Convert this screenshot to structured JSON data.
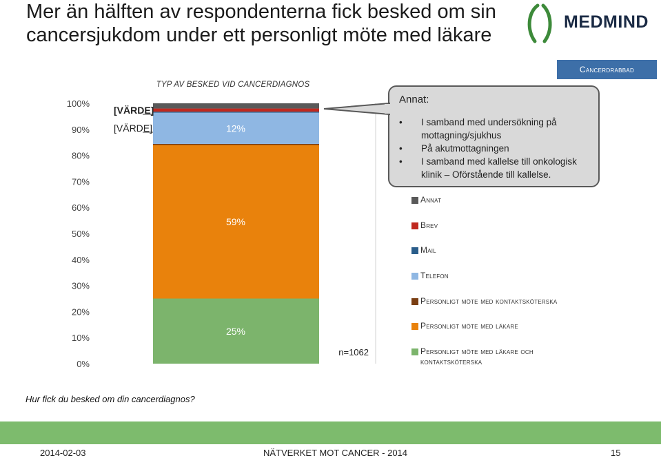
{
  "slide": {
    "title_line1": "Mer än hälften av respondenterna fick besked om sin",
    "title_line2": "cancersjukdom under ett personligt möte med läkare",
    "logo_text": "MEDMIND",
    "tag": "Cancerdrabbad",
    "question": "Hur fick du besked om din cancerdiagnos?",
    "footer_date": "2014-02-03",
    "footer_center": "NÄTVERKET MOT CANCER - 2014",
    "footer_page": "15"
  },
  "callout": {
    "heading": "Annat:",
    "items": [
      "I samband med undersökning på mottagning/sjukhus",
      "På akutmottagningen",
      "I samband med kallelse till onkologisk klinik – Oförstående till kallelse."
    ]
  },
  "legend": [
    {
      "label": "Annat",
      "color": "#595959"
    },
    {
      "label": "Brev",
      "color": "#c0281f"
    },
    {
      "label": "Mail",
      "color": "#2a5d8a"
    },
    {
      "label": "Telefon",
      "color": "#8fb7e3"
    },
    {
      "label": "Personligt möte med kontaktsköterska",
      "color": "#7a3e12"
    },
    {
      "label": "Personligt möte med läkare",
      "color": "#e9820c"
    },
    {
      "label": "Personligt möte med läkare och kontaktsköterska",
      "color": "#7cb46c"
    }
  ],
  "chart_data": {
    "type": "bar",
    "stacked": true,
    "title": "Typ av besked vid cancerdiagnos",
    "sample_label": "n=1062",
    "ylim": [
      0,
      100
    ],
    "yticks": [
      "0%",
      "10%",
      "20%",
      "30%",
      "40%",
      "50%",
      "60%",
      "70%",
      "80%",
      "90%",
      "100%"
    ],
    "categories": [
      ""
    ],
    "series": [
      {
        "name": "Personligt möte med läkare och kontaktsköterska",
        "values": [
          25
        ],
        "label": "25%",
        "color": "#7cb46c"
      },
      {
        "name": "Personligt möte med läkare",
        "values": [
          59
        ],
        "label": "59%",
        "color": "#e9820c"
      },
      {
        "name": "Personligt möte med kontaktsköterska",
        "values": [
          0.4
        ],
        "label": "",
        "color": "#7a3e12"
      },
      {
        "name": "Telefon",
        "values": [
          12
        ],
        "label": "12%",
        "color": "#8fb7e3"
      },
      {
        "name": "Mail",
        "values": [
          0.4
        ],
        "label": "",
        "color": "#2a5d8a"
      },
      {
        "name": "Brev",
        "values": [
          1.2
        ],
        "label": "[VÄRDE]",
        "color": "#c0281f"
      },
      {
        "name": "Annat",
        "values": [
          2
        ],
        "label": "[VÄRDE]",
        "color": "#595959"
      }
    ]
  }
}
